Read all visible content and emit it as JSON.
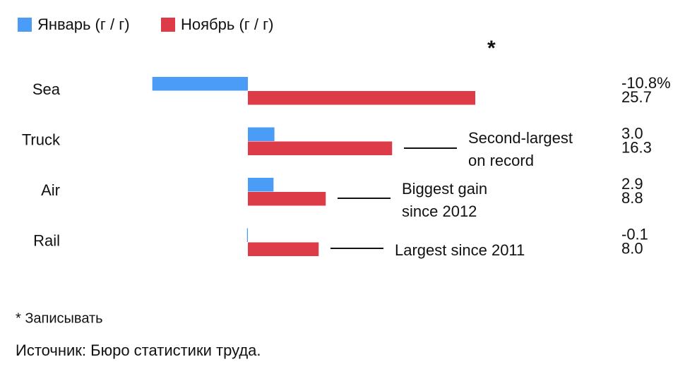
{
  "chart_data": {
    "type": "hbar",
    "categories": [
      "Sea",
      "Truck",
      "Air",
      "Rail"
    ],
    "series": [
      {
        "name": "Январь (г / г)",
        "color": "#4a9cf7",
        "values": [
          -10.8,
          3.0,
          2.9,
          -0.1
        ],
        "value_labels": [
          "-10.8%",
          "3.0",
          "2.9",
          "-0.1"
        ]
      },
      {
        "name": "Ноябрь (г / г)",
        "color": "#dd3b47",
        "values": [
          25.7,
          16.3,
          8.8,
          8.0
        ],
        "value_labels": [
          "25.7",
          "16.3",
          "8.8",
          "8.0"
        ]
      }
    ],
    "legend": "top-left",
    "marker": "*",
    "annotations": [
      [
        "Second-largest",
        "on record"
      ],
      [
        "Biggest gain",
        "since 2012"
      ],
      [
        "Largest since 2011"
      ]
    ],
    "footnote": "* Записывать",
    "source": "Источник: Бюро статистики труда."
  }
}
